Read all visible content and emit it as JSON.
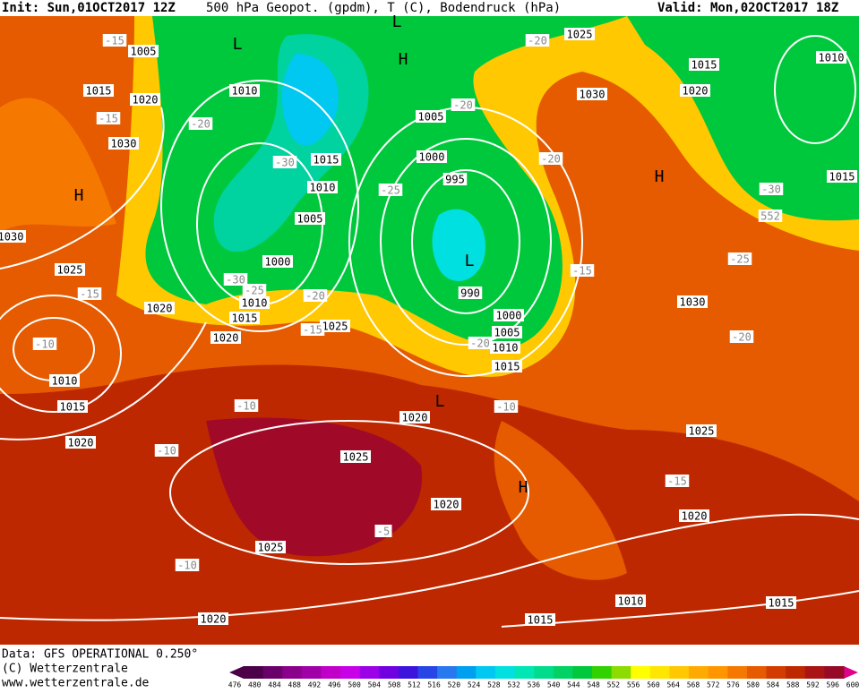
{
  "header": {
    "init": "Init: Sun,01OCT2017 12Z",
    "title": "500 hPa Geopot. (gpdm), T (C), Bodendruck (hPa)",
    "valid": "Valid: Mon,02OCT2017 18Z"
  },
  "footer": {
    "data": "Data: GFS OPERATIONAL 0.250°",
    "copyright": "(C) Wetterzentrale",
    "url": "www.wetterzentrale.de"
  },
  "legend": {
    "labels": [
      476,
      480,
      484,
      488,
      492,
      496,
      500,
      504,
      508,
      512,
      516,
      520,
      524,
      528,
      532,
      536,
      540,
      544,
      548,
      552,
      556,
      560,
      564,
      568,
      572,
      576,
      580,
      584,
      588,
      592,
      596,
      600
    ],
    "colors": [
      "#4b0047",
      "#6a006a",
      "#8b008b",
      "#a000a8",
      "#c000c8",
      "#c800e8",
      "#9b00e6",
      "#7000e0",
      "#3c14dc",
      "#2846e6",
      "#2878f0",
      "#00a0f0",
      "#00c8f0",
      "#00e0e0",
      "#00e6b4",
      "#00dc8c",
      "#00d264",
      "#00c83c",
      "#32d200",
      "#8cdc00",
      "#ffff00",
      "#ffe600",
      "#ffc800",
      "#ffaa00",
      "#ff9600",
      "#f57800",
      "#e65a00",
      "#d23c00",
      "#be2800",
      "#aa1414",
      "#960a28"
    ]
  },
  "map": {
    "pressure_labels": [
      1005,
      1015,
      1020,
      1030,
      1010,
      1015,
      1010,
      1005,
      1000,
      1010,
      1015,
      1020,
      1020,
      1025,
      1030,
      1025,
      1005,
      1000,
      995,
      990,
      1000,
      1005,
      1010,
      1015,
      1020,
      1025,
      1015,
      1030,
      1020,
      1010,
      1015,
      1030,
      1025,
      1020,
      1010,
      1015,
      1015,
      1020,
      1025,
      1025,
      1020,
      1020,
      1015,
      1010
    ],
    "temperature_labels": [
      -15,
      -15,
      -20,
      -30,
      -25,
      -20,
      -20,
      -20,
      -15,
      -30,
      -25,
      -20,
      -15,
      -20,
      -10,
      -10,
      -10,
      -10,
      -15,
      -5,
      -10,
      -15,
      -20,
      -25,
      -30,
      552
    ],
    "centers": [
      "L",
      "H",
      "L",
      "H",
      "L",
      "H",
      "L",
      "H"
    ]
  }
}
